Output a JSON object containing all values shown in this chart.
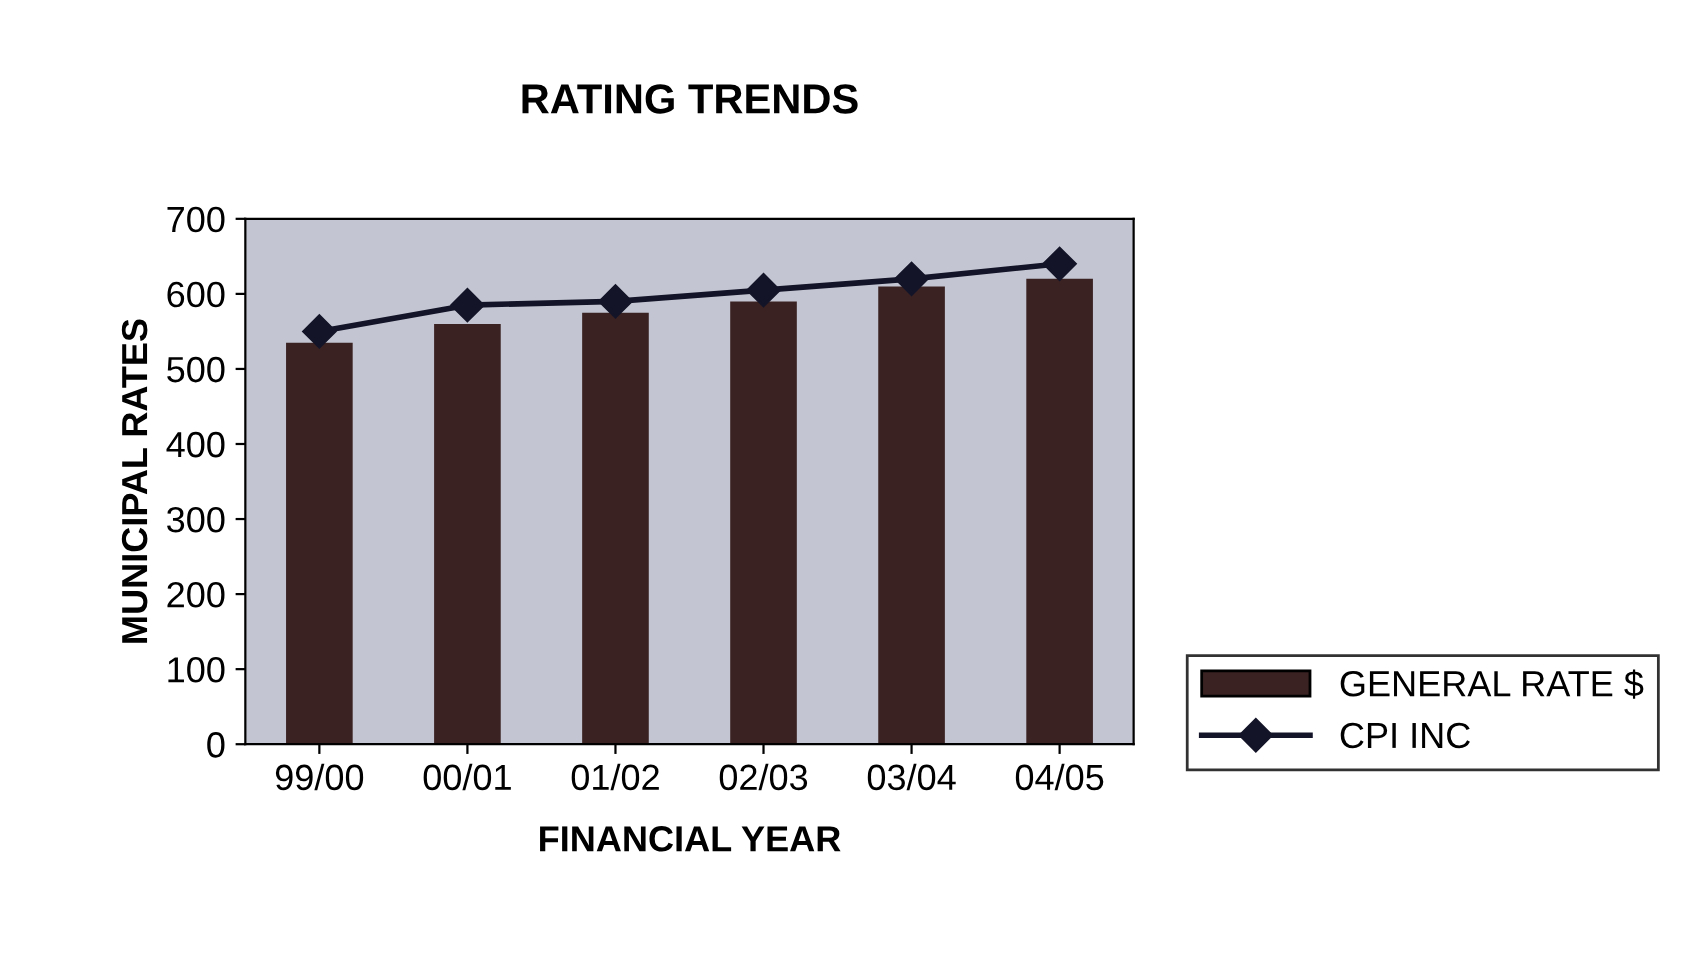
{
  "chart_data": {
    "type": "bar",
    "title": "RATING TRENDS",
    "xlabel": "FINANCIAL YEAR",
    "ylabel": "MUNICIPAL RATES",
    "categories": [
      "99/00",
      "00/01",
      "01/02",
      "02/03",
      "03/04",
      "04/05"
    ],
    "series": [
      {
        "name": "GENERAL RATE $",
        "color": "#3a2222",
        "values": [
          535,
          560,
          575,
          590,
          610,
          620
        ]
      },
      {
        "name": "CPI INC",
        "type": "line",
        "color": "#141428",
        "marker": "diamond",
        "values": [
          550,
          585,
          590,
          605,
          620,
          640
        ]
      }
    ],
    "ylim": [
      0,
      700
    ],
    "yticks": [
      0,
      100,
      200,
      300,
      400,
      500,
      600,
      700
    ],
    "grid": false,
    "legend": "right"
  }
}
